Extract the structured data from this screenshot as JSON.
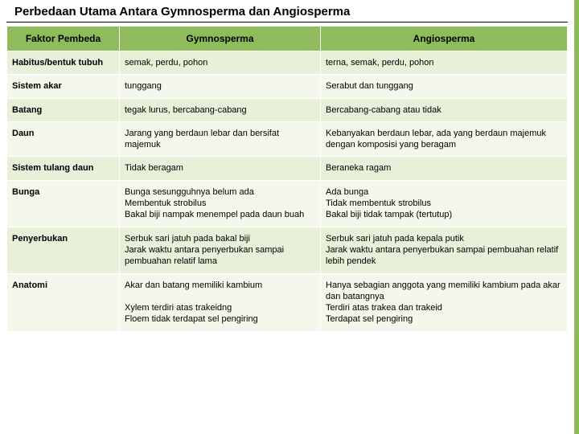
{
  "title": "Perbedaan Utama Antara Gymnosperma dan Angiosperma",
  "headers": {
    "c0": "Faktor Pembeda",
    "c1": "Gymnosperma",
    "c2": "Angiosperma"
  },
  "rows": [
    {
      "factor": "Habitus/bentuk tubuh",
      "gymno": "semak, perdu, pohon",
      "angio": "terna, semak, perdu, pohon"
    },
    {
      "factor": "Sistem akar",
      "gymno": "tunggang",
      "angio": "Serabut dan tunggang"
    },
    {
      "factor": "Batang",
      "gymno": "tegak lurus, bercabang-cabang",
      "angio": "Bercabang-cabang atau tidak"
    },
    {
      "factor": "Daun",
      "gymno": "Jarang yang berdaun lebar dan bersifat majemuk",
      "angio": "Kebanyakan berdaun lebar, ada yang berdaun majemuk dengan komposisi yang beragam"
    },
    {
      "factor": "Sistem tulang daun",
      "gymno": "Tidak beragam",
      "angio": "Beraneka ragam"
    },
    {
      "factor": "Bunga",
      "gymno": "Bunga sesungguhnya belum ada\nMembentuk strobilus\nBakal biji nampak menempel pada daun buah",
      "angio": "Ada bunga\nTidak membentuk strobilus\nBakal biji tidak tampak (tertutup)"
    },
    {
      "factor": "Penyerbukan",
      "gymno": "Serbuk sari jatuh pada bakal biji\nJarak waktu antara penyerbukan sampai pembuahan relatif lama",
      "angio": "Serbuk sari jatuh pada kepala putik\nJarak waktu antara penyerbukan sampai pembuahan relatif lebih pendek"
    },
    {
      "factor": "Anatomi",
      "gymno": "Akar dan batang memiliki kambium\n\nXylem terdiri atas trakeidng\nFloem tidak terdapat sel pengiring",
      "angio": "Hanya sebagian anggota yang memiliki kambium pada akar dan batangnya\nTerdiri atas trakea dan trakeid\nTerdapat sel pengiring"
    }
  ]
}
